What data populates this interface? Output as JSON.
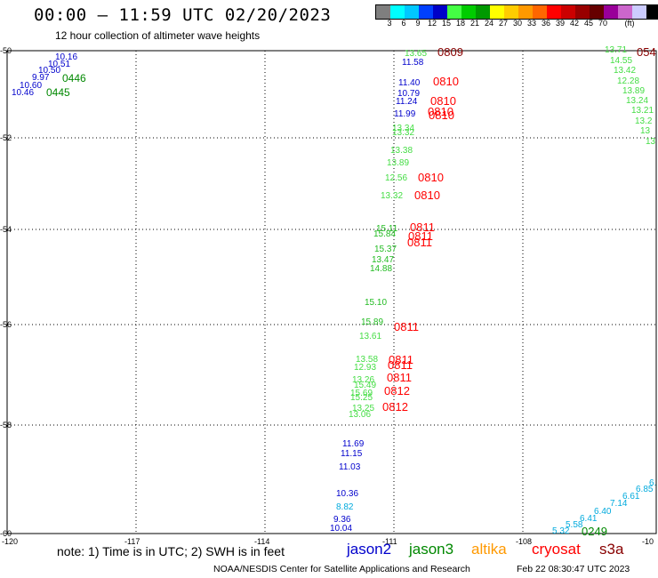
{
  "title": "00:00 – 11:59 UTC 02/20/2023",
  "subtitle": "12 hour collection of altimeter wave heights",
  "scale": {
    "colors": [
      "#7f7f7f",
      "#00ffff",
      "#00c8ff",
      "#0040ff",
      "#0000c8",
      "#44ff44",
      "#00cc00",
      "#009900",
      "#ffff00",
      "#ffcc00",
      "#ff9900",
      "#ff6600",
      "#ff0000",
      "#cc0000",
      "#990000",
      "#660000",
      "#990099",
      "#cc66cc",
      "#ccccff",
      "#000000"
    ],
    "ticks": [
      "3",
      "6",
      "9",
      "12",
      "15",
      "18",
      "21",
      "24",
      "27",
      "30",
      "33",
      "36",
      "39",
      "42",
      "45",
      "70"
    ],
    "unit": "(ft)"
  },
  "axes": {
    "lon_labels": [
      "-120",
      "-117",
      "-114",
      "-111",
      "-108",
      "-10"
    ],
    "lat_labels": [
      "-50",
      "-52",
      "-54",
      "-56",
      "-58",
      "-60"
    ]
  },
  "colors": {
    "jason2": "#0000cc",
    "jason3": "#008800",
    "altika": "#ff9900",
    "cryosat": "#ff0000",
    "s3a": "#880000",
    "light_green": "#44dd44",
    "mid_green": "#22bb22",
    "cyan": "#00aadd"
  },
  "measurements": {
    "left_group": [
      {
        "v": "10.16",
        "c": "jason2"
      },
      {
        "v": "10.51",
        "c": "jason2"
      },
      {
        "v": "10.50",
        "c": "jason2"
      },
      {
        "v": "9.97",
        "c": "jason2"
      },
      {
        "v": "10.60",
        "c": "jason2"
      },
      {
        "v": "10.46",
        "c": "jason2"
      }
    ],
    "left_times": [
      "0446",
      "0445"
    ],
    "track_light": [
      "13.65",
      "13.34",
      "13.32",
      "13.38",
      "13.89",
      "12.56",
      "13.32",
      "15.11",
      "15.84",
      "15.37",
      "13.47",
      "14.88",
      "15.10",
      "15.89",
      "13.61",
      "13.58",
      "12.93",
      "13.26",
      "15.49",
      "15.69",
      "15.25",
      "13.25",
      "13.06"
    ],
    "track_blue": [
      "11.58",
      "11.40",
      "10.79",
      "11.24",
      "11.99"
    ],
    "track_blue_south": [
      "11.69",
      "11.15",
      "11.03",
      "10.36",
      "8.82",
      "9.36",
      "10.04"
    ],
    "track_times_red": [
      "0809",
      "0810",
      "0810",
      "0810",
      "0810",
      "0810",
      "0810",
      "0811",
      "0811",
      "0811",
      "0811",
      "0811",
      "0811",
      "0811",
      "0812",
      "0812"
    ],
    "right_edge": [
      "13.71",
      "14.55",
      "13.42",
      "12.28",
      "13.89",
      "13.24",
      "13.21",
      "13.2",
      "13",
      "13"
    ],
    "right_edge_time": "054",
    "bottom_right": [
      "6.",
      "6.85",
      "6.61",
      "7.14",
      "6.40",
      "6.41",
      "5.58",
      "5.32"
    ],
    "bottom_right_time": "0249"
  },
  "note": "note: 1) Time is in UTC; 2) SWH is in feet",
  "legend": {
    "jason2": "jason2",
    "jason3": "jason3",
    "altika": "altika",
    "cryosat": "cryosat",
    "s3a": "s3a"
  },
  "credit": "NOAA/NESDIS Center for Satellite Applications and Research",
  "timestamp": "Feb 22 08:30:47 UTC 2023"
}
